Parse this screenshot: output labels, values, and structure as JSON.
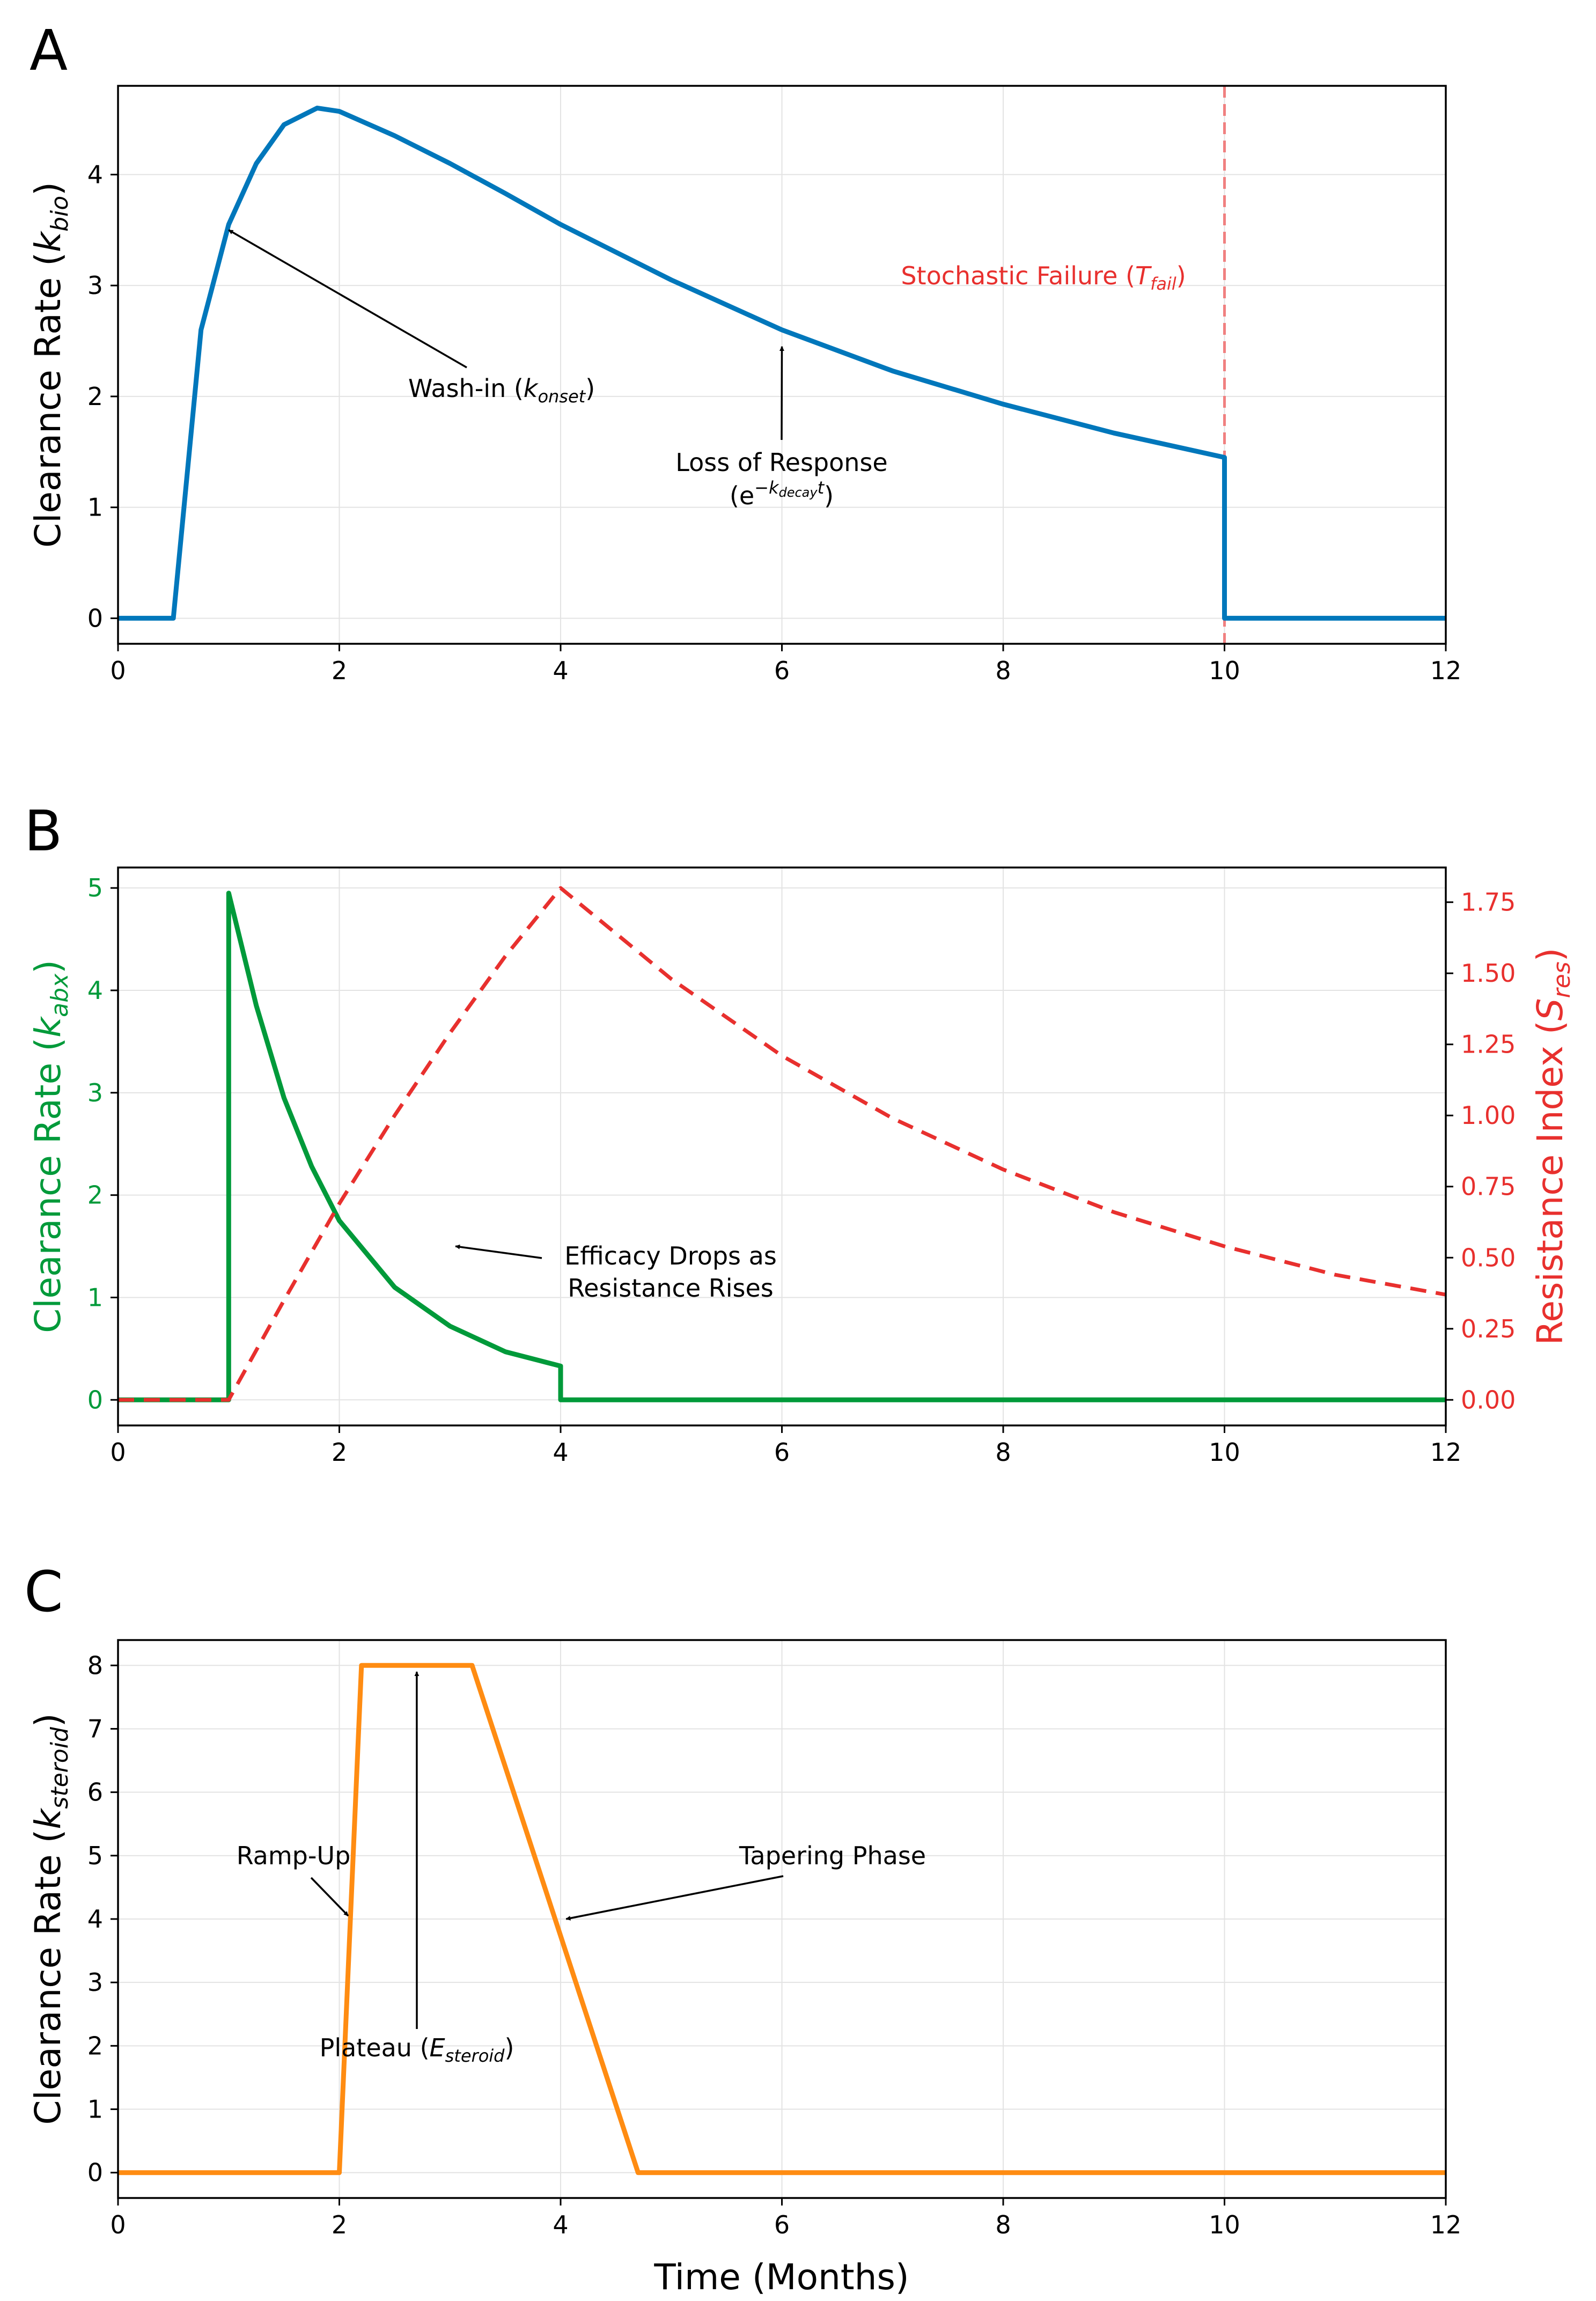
{
  "chart_data": [
    {
      "panel": "A",
      "type": "line",
      "xlim": [
        0,
        12
      ],
      "ylim": [
        -0.23,
        4.8
      ],
      "xticks": [
        0,
        2,
        4,
        6,
        8,
        10,
        12
      ],
      "yticks": [
        0,
        1,
        2,
        3,
        4
      ],
      "ylabel_main": "Clearance Rate (",
      "ylabel_sym": "k",
      "ylabel_sub": "bio",
      "ylabel_end": ")",
      "grid": true,
      "series": [
        {
          "name": "Clearance Rate k_bio",
          "color": "#0077bb",
          "style": "solid",
          "x": [
            0,
            0.5,
            0.5,
            0.75,
            1.0,
            1.25,
            1.5,
            1.8,
            2.0,
            2.5,
            3.0,
            3.5,
            4.0,
            5.0,
            6.0,
            7.0,
            8.0,
            9.0,
            10.0,
            10.0,
            12.0
          ],
          "y": [
            0,
            0,
            0,
            2.6,
            3.55,
            4.1,
            4.45,
            4.6,
            4.57,
            4.35,
            4.1,
            3.83,
            3.55,
            3.05,
            2.6,
            2.23,
            1.93,
            1.67,
            1.45,
            0,
            0
          ]
        }
      ],
      "vline": {
        "x": 10,
        "color": "#f08080",
        "style": "dashed"
      },
      "annotations": [
        {
          "text": "Wash-in (",
          "sym": "k",
          "sub": "onset",
          "end": ")",
          "text_at": [
            3.5,
            2.1
          ],
          "arrow_to": [
            1.0,
            3.5
          ]
        },
        {
          "text": "Loss of Response",
          "text2": "(e",
          "sup": "−k",
          "supsub": "decay",
          "supend": "t",
          "end2": ")",
          "text_at": [
            6.0,
            1.2
          ],
          "arrow_to": [
            6.0,
            2.45
          ]
        }
      ],
      "failure_label": {
        "text": "Stochastic Failure (",
        "sym": "T",
        "sub": "fail",
        "end": ")",
        "color": "#e8302e",
        "at": [
          9.85,
          3.05
        ]
      }
    },
    {
      "panel": "B",
      "type": "line",
      "xlim": [
        0,
        12
      ],
      "ylim": [
        -0.25,
        5.2
      ],
      "y2lim": [
        -0.09,
        1.872
      ],
      "xticks": [
        0,
        2,
        4,
        6,
        8,
        10,
        12
      ],
      "yticks": [
        0,
        1,
        2,
        3,
        4,
        5
      ],
      "y2ticks": [
        "0.00",
        "0.25",
        "0.50",
        "0.75",
        "1.00",
        "1.25",
        "1.50",
        "1.75"
      ],
      "ylabel_main": "Clearance Rate (",
      "ylabel_sym": "k",
      "ylabel_sub": "abx",
      "ylabel_end": ")",
      "y2label_main": "Resistance Index (",
      "y2label_sym": "S",
      "y2label_sub": "res",
      "y2label_end": ")",
      "left_color": "#009a3a",
      "right_color": "#e8302e",
      "grid": true,
      "series": [
        {
          "name": "Clearance Rate k_abx",
          "axis": "left",
          "color": "#009a3a",
          "style": "solid",
          "x": [
            0,
            1.0,
            1.0,
            1.25,
            1.5,
            1.75,
            2.0,
            2.5,
            3.0,
            3.5,
            4.0,
            4.0,
            12.0
          ],
          "y": [
            0,
            0,
            4.95,
            3.85,
            2.95,
            2.28,
            1.75,
            1.1,
            0.72,
            0.47,
            0.33,
            0,
            0
          ]
        },
        {
          "name": "Resistance Index S_res",
          "axis": "right",
          "color": "#e8302e",
          "style": "dashed",
          "x": [
            0,
            1.0,
            1.5,
            2.0,
            2.5,
            3.0,
            3.5,
            4.0,
            5.0,
            6.0,
            7.0,
            8.0,
            9.0,
            10.0,
            11.0,
            12.0
          ],
          "y": [
            0,
            0,
            0.35,
            0.69,
            1.0,
            1.29,
            1.56,
            1.8,
            1.48,
            1.21,
            0.99,
            0.81,
            0.66,
            0.54,
            0.44,
            0.37
          ]
        }
      ],
      "annotations": [
        {
          "text": "Efficacy Drops as",
          "text2": "Resistance Rises",
          "text_at": [
            5.0,
            1.25
          ],
          "arrow_to": [
            3.05,
            1.5
          ]
        }
      ]
    },
    {
      "panel": "C",
      "type": "line",
      "xlim": [
        0,
        12
      ],
      "ylim": [
        -0.4,
        8.4
      ],
      "xticks": [
        0,
        2,
        4,
        6,
        8,
        10,
        12
      ],
      "yticks": [
        0,
        1,
        2,
        3,
        4,
        5,
        6,
        7,
        8
      ],
      "ylabel_main": "Clearance Rate (",
      "ylabel_sym": "k",
      "ylabel_sub": "steroid",
      "ylabel_end": ")",
      "xlabel": "Time (Months)",
      "grid": true,
      "series": [
        {
          "name": "Clearance Rate k_steroid",
          "color": "#ff8c12",
          "style": "solid",
          "x": [
            0,
            2.0,
            2.2,
            3.2,
            4.7,
            12.0
          ],
          "y": [
            0,
            0,
            8,
            8,
            0,
            0
          ]
        }
      ],
      "annotations": [
        {
          "text": "Ramp-Up",
          "text_at": [
            1.57,
            5.1
          ],
          "arrow_to": [
            2.08,
            4.05
          ]
        },
        {
          "text": "Plateau (",
          "sym": "E",
          "sub": "steroid",
          "end": ")",
          "text_at": [
            2.7,
            2.0
          ],
          "arrow_to": [
            2.7,
            7.9
          ]
        },
        {
          "text": "Tapering Phase",
          "text_at": [
            6.45,
            5.1
          ],
          "arrow_to": [
            4.05,
            4.0
          ]
        }
      ]
    }
  ]
}
